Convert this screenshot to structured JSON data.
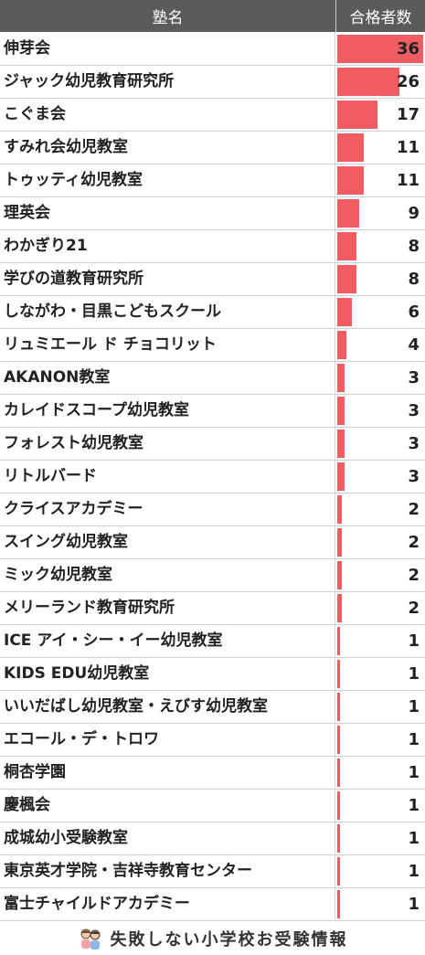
{
  "header": {
    "name_label": "塾名",
    "count_label": "合格者数"
  },
  "footer": {
    "brand": "失敗しない小学校お受験情報",
    "icon": "children-icon"
  },
  "colors": {
    "bar": "#f15c63",
    "header_bg": "#5b5b5b"
  },
  "chart_data": {
    "type": "bar",
    "orientation": "horizontal",
    "categories": [
      "伸芽会",
      "ジャック幼児教育研究所",
      "こぐま会",
      "すみれ会幼児教室",
      "トゥッティ幼児教室",
      "理英会",
      "わかぎり21",
      "学びの道教育研究所",
      "しながわ・目黒こどもスクール",
      "リュミエール ド チョコリット",
      "AKANON教室",
      "カレイドスコープ幼児教室",
      "フォレスト幼児教室",
      "リトルバード",
      "クライスアカデミー",
      "スイング幼児教室",
      "ミック幼児教室",
      "メリーランド教育研究所",
      "ICE アイ・シー・イー幼児教室",
      "KIDS EDU幼児教室",
      "いいだばし幼児教室・えびす幼児教室",
      "エコール・デ・トロワ",
      "桐杏学園",
      "慶楓会",
      "成城幼小受験教室",
      "東京英才学院・吉祥寺教育センター",
      "富士チャイルドアカデミー"
    ],
    "values": [
      36,
      26,
      17,
      11,
      11,
      9,
      8,
      8,
      6,
      4,
      3,
      3,
      3,
      3,
      2,
      2,
      2,
      2,
      1,
      1,
      1,
      1,
      1,
      1,
      1,
      1,
      1
    ],
    "xlim": [
      0,
      36
    ]
  }
}
